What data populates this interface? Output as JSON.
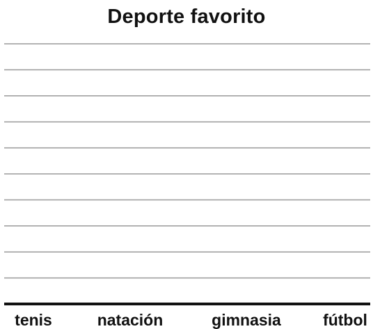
{
  "chart_data": {
    "type": "bar",
    "title": "Deporte favorito",
    "categories": [
      "tenis",
      "natación",
      "gimnasia",
      "fútbol"
    ],
    "values": [
      0,
      0,
      0,
      0
    ],
    "xlabel": "",
    "ylabel": "",
    "ylim": [
      0,
      10
    ],
    "grid": true,
    "colors": {
      "gridline": "#9a9a9a",
      "axis": "#111111",
      "text": "#111111"
    }
  }
}
